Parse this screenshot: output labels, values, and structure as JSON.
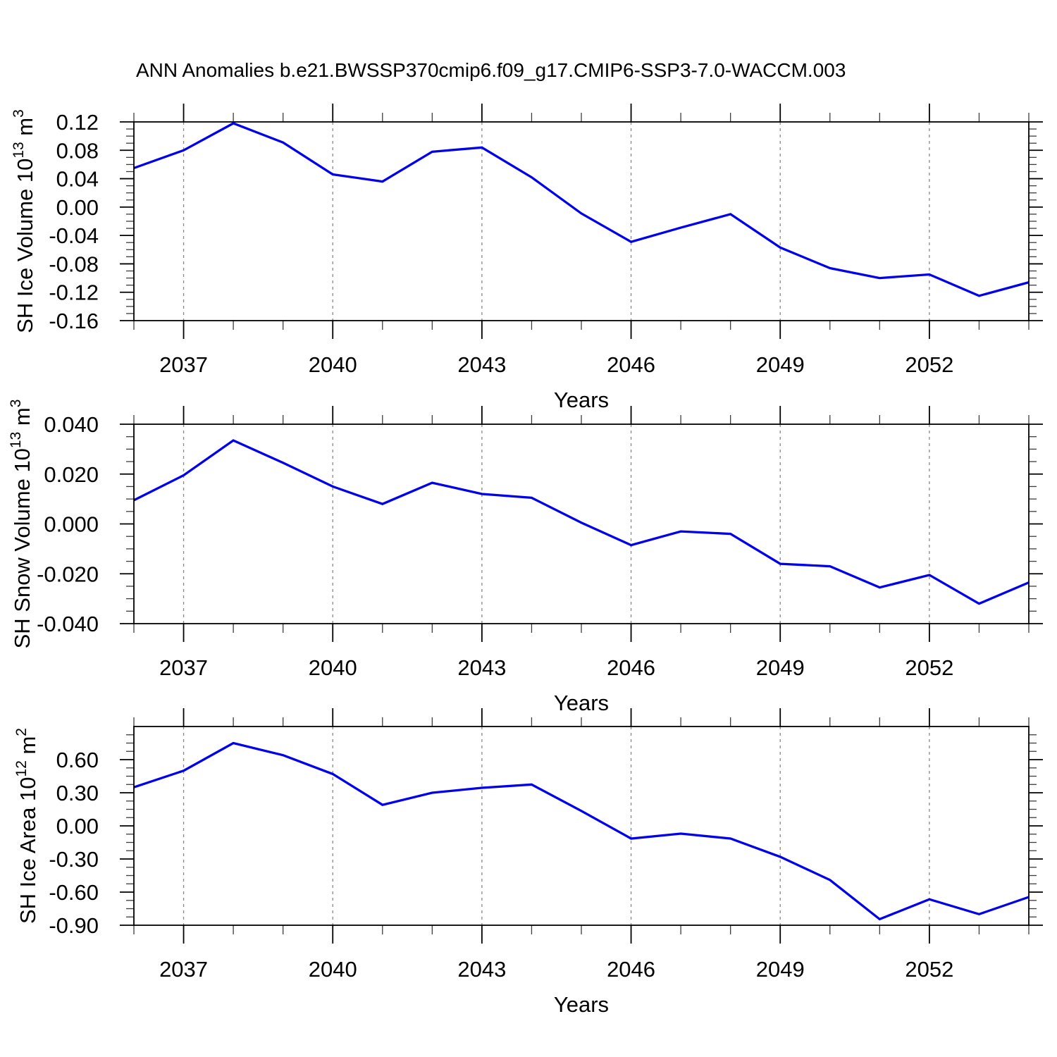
{
  "title": "ANN Anomalies b.e21.BWSSP370cmip6.f09_g17.CMIP6-SSP3-7.0-WACCM.003",
  "line_color": "#0000ee",
  "grid_color": "#888888",
  "chart_data": [
    {
      "type": "line",
      "name": "sh-ice-volume",
      "ylabel_base": "SH Ice Volume 10",
      "ylabel_sup": "13",
      "ylabel_unit": " m",
      "ylabel_unit_sup": "3",
      "xlabel": "Years",
      "x": [
        2036,
        2037,
        2038,
        2039,
        2040,
        2041,
        2042,
        2043,
        2044,
        2045,
        2046,
        2047,
        2048,
        2049,
        2050,
        2051,
        2052,
        2053,
        2054
      ],
      "values": [
        0.055,
        0.08,
        0.118,
        0.091,
        0.046,
        0.036,
        0.078,
        0.084,
        0.042,
        -0.009,
        -0.049,
        -0.029,
        -0.01,
        -0.057,
        -0.086,
        -0.1,
        -0.095,
        -0.125,
        -0.106
      ],
      "xlim": [
        2036,
        2054
      ],
      "ylim": [
        -0.16,
        0.12
      ],
      "yticks": [
        0.12,
        0.08,
        0.04,
        0.0,
        -0.04,
        -0.08,
        -0.12,
        -0.16
      ],
      "ytick_labels": [
        "0.12",
        "0.08",
        "0.04",
        "0.00",
        "-0.04",
        "-0.08",
        "-0.12",
        "-0.16"
      ],
      "y_minor_step": 0.01,
      "xticks": [
        2037,
        2040,
        2043,
        2046,
        2049,
        2052
      ],
      "xtick_labels": [
        "2037",
        "2040",
        "2043",
        "2046",
        "2049",
        "2052"
      ],
      "x_minor_step": 1,
      "grid": "dashed-vertical-at-major-xticks",
      "legend": "none",
      "line_color": "#0000ee"
    },
    {
      "type": "line",
      "name": "sh-snow-volume",
      "ylabel_base": "SH Snow Volume 10",
      "ylabel_sup": "13",
      "ylabel_unit": " m",
      "ylabel_unit_sup": "3",
      "xlabel": "Years",
      "x": [
        2036,
        2037,
        2038,
        2039,
        2040,
        2041,
        2042,
        2043,
        2044,
        2045,
        2046,
        2047,
        2048,
        2049,
        2050,
        2051,
        2052,
        2053,
        2054
      ],
      "values": [
        0.0095,
        0.0195,
        0.0335,
        0.0245,
        0.015,
        0.008,
        0.0165,
        0.012,
        0.0105,
        0.0005,
        -0.0085,
        -0.003,
        -0.004,
        -0.016,
        -0.017,
        -0.0255,
        -0.0205,
        -0.032,
        -0.0235
      ],
      "xlim": [
        2036,
        2054
      ],
      "ylim": [
        -0.04,
        0.04
      ],
      "yticks": [
        0.04,
        0.02,
        0.0,
        -0.02,
        -0.04
      ],
      "ytick_labels": [
        "0.040",
        "0.020",
        "0.000",
        "-0.020",
        "-0.040"
      ],
      "y_minor_step": 0.005,
      "xticks": [
        2037,
        2040,
        2043,
        2046,
        2049,
        2052
      ],
      "xtick_labels": [
        "2037",
        "2040",
        "2043",
        "2046",
        "2049",
        "2052"
      ],
      "x_minor_step": 1,
      "grid": "dashed-vertical-at-major-xticks",
      "legend": "none",
      "line_color": "#0000ee"
    },
    {
      "type": "line",
      "name": "sh-ice-area",
      "ylabel_base": "SH Ice Area 10",
      "ylabel_sup": "12",
      "ylabel_unit": " m",
      "ylabel_unit_sup": "2",
      "xlabel": "Years",
      "x": [
        2036,
        2037,
        2038,
        2039,
        2040,
        2041,
        2042,
        2043,
        2044,
        2045,
        2046,
        2047,
        2048,
        2049,
        2050,
        2051,
        2052,
        2053,
        2054
      ],
      "values": [
        0.35,
        0.5,
        0.75,
        0.64,
        0.47,
        0.19,
        0.3,
        0.345,
        0.375,
        0.135,
        -0.115,
        -0.07,
        -0.115,
        -0.28,
        -0.49,
        -0.845,
        -0.665,
        -0.8,
        -0.645
      ],
      "xlim": [
        2036,
        2054
      ],
      "ylim": [
        -0.9,
        0.9
      ],
      "yticks": [
        0.6,
        0.3,
        0.0,
        -0.3,
        -0.6,
        -0.9
      ],
      "ytick_labels": [
        "0.60",
        "0.30",
        "0.00",
        "-0.30",
        "-0.60",
        "-0.90"
      ],
      "y_minor_step": 0.075,
      "xticks": [
        2037,
        2040,
        2043,
        2046,
        2049,
        2052
      ],
      "xtick_labels": [
        "2037",
        "2040",
        "2043",
        "2046",
        "2049",
        "2052"
      ],
      "x_minor_step": 1,
      "grid": "dashed-vertical-at-major-xticks",
      "legend": "none",
      "line_color": "#0000ee"
    }
  ]
}
